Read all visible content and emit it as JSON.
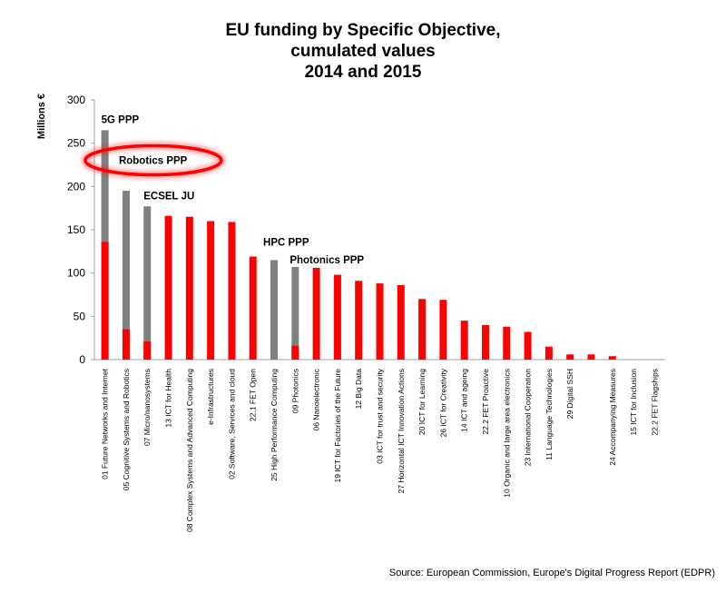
{
  "chart_data": {
    "type": "bar",
    "title_lines": [
      "EU funding by Specific Objective,",
      "cumulated values",
      "2014 and 2015"
    ],
    "ylabel": "Millions €",
    "ylim": [
      0,
      300
    ],
    "yticks": [
      0,
      50,
      100,
      150,
      200,
      250,
      300
    ],
    "grid": false,
    "categories": [
      "01 Future Networks and Internet",
      "05 Cognitive Systems and Robotics",
      "07 Micro/nanosystems",
      "13 ICT for Health",
      "08 Complex Systems and Advanced Computing",
      "e-Infrastructures",
      "02 Software, Services and cloud",
      "22.1 FET Open",
      "25 High Performance Computing",
      "09 Photonics",
      "06 Nanoelectronic",
      "19 ICT for Factories of the Future",
      "12 Big Data",
      "03 ICT for trust and security",
      "27 Horizontal ICT Innovation Actions",
      "20 ICT for Learning",
      "26 ICT for Creativity",
      "14 ICT and ageing",
      "22.2 FET Proactive",
      "10 Organic and large area electronics",
      "23 International Cooperation",
      "11 Language Technologies",
      "29 Digital SSH",
      "",
      "24 Accompanying Measures",
      "15 ICT for Inclusion",
      "22.2 FET Flagships"
    ],
    "series": [
      {
        "color": "#ff0000",
        "values": [
          136,
          35,
          21,
          166,
          165,
          160,
          159,
          119,
          0,
          16,
          106,
          98,
          91,
          88,
          86,
          70,
          69,
          45,
          40,
          38,
          32,
          15,
          6,
          6,
          4,
          0,
          0
        ]
      },
      {
        "color": "#808080",
        "values": [
          265,
          195,
          177,
          0,
          0,
          0,
          0,
          0,
          115,
          107,
          0,
          0,
          0,
          0,
          0,
          0,
          0,
          0,
          0,
          0,
          0,
          0,
          0,
          0,
          0,
          0,
          0
        ]
      }
    ],
    "annotations": [
      {
        "text": "5G PPP",
        "category_index": 0
      },
      {
        "text": "Robotics PPP",
        "category_index": 1,
        "highlighted": true
      },
      {
        "text": "ECSEL  JU",
        "category_index": 2
      },
      {
        "text": "HPC PPP",
        "category_index": 8
      },
      {
        "text": "Photonics PPP",
        "category_index": 9
      }
    ],
    "highlight_color": "#ff0000"
  },
  "source": "Source: European Commission, Europe's Digital Progress Report (EDPR)"
}
